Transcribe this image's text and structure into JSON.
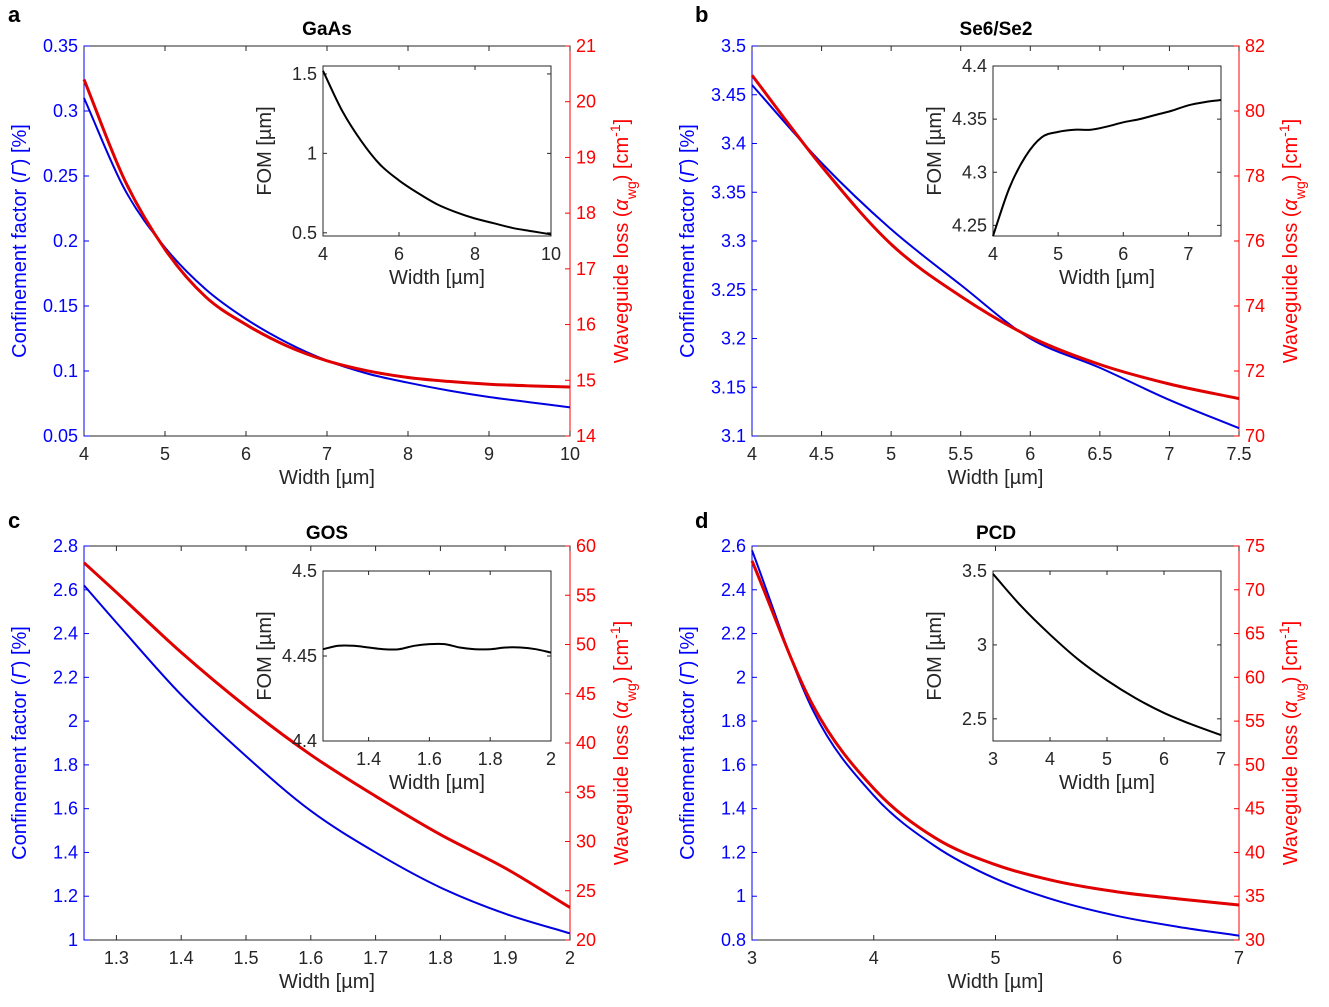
{
  "colors": {
    "left_axis": "#0000ff",
    "right_axis": "#ff0000",
    "confinement_line": "#0000e0",
    "loss_line": "#e00000",
    "fom_line": "#000000"
  },
  "chart_data": [
    {
      "panel_label": "a",
      "type": "line",
      "title": "GaAs",
      "xlabel": "Width [µm]",
      "ylabel_left": "Confinement factor (Γ) [%]",
      "ylabel_right": "Waveguide loss (αwg) [cm-1]",
      "xlim": [
        4,
        10
      ],
      "xticks": [
        "4",
        "5",
        "6",
        "7",
        "8",
        "9",
        "10"
      ],
      "ylim_left": [
        0.05,
        0.35
      ],
      "yticks_left": [
        "0.05",
        "0.1",
        "0.15",
        "0.2",
        "0.25",
        "0.3",
        "0.35"
      ],
      "ylim_right": [
        14,
        21
      ],
      "yticks_right": [
        "14",
        "15",
        "16",
        "17",
        "18",
        "19",
        "20",
        "21"
      ],
      "x": [
        4,
        4.5,
        5,
        5.5,
        6,
        6.5,
        7,
        7.5,
        8,
        8.5,
        9,
        9.5,
        10
      ],
      "series": [
        {
          "axis": "left",
          "values": [
            0.31,
            0.24,
            0.195,
            0.163,
            0.14,
            0.122,
            0.108,
            0.098,
            0.091,
            0.085,
            0.08,
            0.076,
            0.072
          ]
        },
        {
          "axis": "right",
          "values": [
            20.4,
            18.6,
            17.35,
            16.5,
            16.0,
            15.62,
            15.35,
            15.17,
            15.05,
            14.98,
            14.93,
            14.9,
            14.88
          ]
        }
      ],
      "inset": {
        "xlabel": "Width [µm]",
        "ylabel": "FOM [µm]",
        "xlim": [
          4,
          10
        ],
        "xticks": [
          "4",
          "6",
          "8",
          "10"
        ],
        "ylim": [
          0.48,
          1.55
        ],
        "yticks": [
          "0.5",
          "1",
          "1.5"
        ],
        "x": [
          4,
          4.5,
          5,
          5.5,
          6,
          6.5,
          7,
          7.5,
          8,
          8.5,
          9,
          9.5,
          10
        ],
        "values": [
          1.52,
          1.27,
          1.08,
          0.93,
          0.83,
          0.75,
          0.68,
          0.63,
          0.59,
          0.56,
          0.53,
          0.51,
          0.49
        ]
      }
    },
    {
      "panel_label": "b",
      "type": "line",
      "title": "Se6/Se2",
      "xlabel": "Width [µm]",
      "ylabel_left": "Confinement factor (Γ) [%]",
      "ylabel_right": "Waveguide loss (αwg) [cm-1]",
      "xlim": [
        4,
        7.5
      ],
      "xticks": [
        "4",
        "4.5",
        "5",
        "5.5",
        "6",
        "6.5",
        "7",
        "7.5"
      ],
      "ylim_left": [
        3.1,
        3.5
      ],
      "yticks_left": [
        "3.1",
        "3.15",
        "3.2",
        "3.25",
        "3.3",
        "3.35",
        "3.4",
        "3.45",
        "3.5"
      ],
      "ylim_right": [
        70,
        82
      ],
      "yticks_right": [
        "70",
        "72",
        "74",
        "76",
        "78",
        "80",
        "82"
      ],
      "x": [
        4,
        4.5,
        5,
        5.5,
        6,
        6.5,
        7,
        7.5
      ],
      "series": [
        {
          "axis": "left",
          "values": [
            3.46,
            3.38,
            3.312,
            3.255,
            3.2,
            3.17,
            3.137,
            3.108
          ]
        },
        {
          "axis": "right",
          "values": [
            81.1,
            78.3,
            75.9,
            74.3,
            73.05,
            72.2,
            71.6,
            71.15
          ]
        }
      ],
      "inset": {
        "xlabel": "Width [µm]",
        "ylabel": "FOM [µm]",
        "xlim": [
          4,
          7.5
        ],
        "xticks": [
          "4",
          "5",
          "6",
          "7"
        ],
        "ylim": [
          4.24,
          4.4
        ],
        "yticks": [
          "4.25",
          "4.3",
          "4.35",
          "4.4"
        ],
        "x": [
          4,
          4.25,
          4.5,
          4.75,
          5,
          5.25,
          5.5,
          5.75,
          6,
          6.25,
          6.5,
          6.75,
          7,
          7.25,
          7.5
        ],
        "values": [
          4.24,
          4.285,
          4.315,
          4.333,
          4.338,
          4.34,
          4.34,
          4.343,
          4.347,
          4.35,
          4.354,
          4.358,
          4.363,
          4.366,
          4.368
        ]
      }
    },
    {
      "panel_label": "c",
      "type": "line",
      "title": "GOS",
      "xlabel": "Width [µm]",
      "ylabel_left": "Confinement factor (Γ) [%]",
      "ylabel_right": "Waveguide loss (αwg) [cm-1]",
      "xlim": [
        1.25,
        2
      ],
      "xticks": [
        "1.3",
        "1.4",
        "1.5",
        "1.6",
        "1.7",
        "1.8",
        "1.9",
        "2"
      ],
      "xtick_values": [
        1.3,
        1.4,
        1.5,
        1.6,
        1.7,
        1.8,
        1.9,
        2
      ],
      "ylim_left": [
        1,
        2.8
      ],
      "yticks_left": [
        "1",
        "1.2",
        "1.4",
        "1.6",
        "1.8",
        "2",
        "2.2",
        "2.4",
        "2.6",
        "2.8"
      ],
      "ylim_right": [
        20,
        60
      ],
      "yticks_right": [
        "20",
        "25",
        "30",
        "35",
        "40",
        "45",
        "50",
        "55",
        "60"
      ],
      "x": [
        1.25,
        1.3,
        1.4,
        1.5,
        1.6,
        1.7,
        1.8,
        1.9,
        2
      ],
      "series": [
        {
          "axis": "left",
          "values": [
            2.62,
            2.45,
            2.12,
            1.84,
            1.59,
            1.4,
            1.24,
            1.12,
            1.03
          ]
        },
        {
          "axis": "right",
          "values": [
            58.3,
            55.3,
            49.2,
            43.7,
            38.8,
            34.6,
            30.7,
            27.3,
            23.3
          ]
        }
      ],
      "inset": {
        "xlabel": "Width [µm]",
        "ylabel": "FOM [µm]",
        "xlim": [
          1.25,
          2
        ],
        "xticks": [
          "1.4",
          "1.6",
          "1.8",
          "2"
        ],
        "xtick_values": [
          1.4,
          1.6,
          1.8,
          2
        ],
        "ylim": [
          4.4,
          4.5
        ],
        "yticks": [
          "4.4",
          "4.45",
          "4.5"
        ],
        "x": [
          1.25,
          1.3,
          1.35,
          1.4,
          1.45,
          1.5,
          1.55,
          1.6,
          1.65,
          1.7,
          1.75,
          1.8,
          1.85,
          1.9,
          1.95,
          2
        ],
        "values": [
          4.454,
          4.456,
          4.456,
          4.455,
          4.454,
          4.454,
          4.456,
          4.457,
          4.457,
          4.455,
          4.454,
          4.454,
          4.455,
          4.455,
          4.454,
          4.452
        ]
      }
    },
    {
      "panel_label": "d",
      "type": "line",
      "title": "PCD",
      "xlabel": "Width [µm]",
      "ylabel_left": "Confinement factor (Γ) [%]",
      "ylabel_right": "Waveguide loss (αwg) [cm-1]",
      "xlim": [
        3,
        7
      ],
      "xticks": [
        "3",
        "4",
        "5",
        "6",
        "7"
      ],
      "ylim_left": [
        0.8,
        2.6
      ],
      "yticks_left": [
        "0.8",
        "1",
        "1.2",
        "1.4",
        "1.6",
        "1.8",
        "2",
        "2.2",
        "2.4",
        "2.6"
      ],
      "ylim_right": [
        30,
        75
      ],
      "yticks_right": [
        "30",
        "35",
        "40",
        "45",
        "50",
        "55",
        "60",
        "65",
        "70",
        "75"
      ],
      "x": [
        3,
        3.5,
        4,
        4.5,
        5,
        5.5,
        6,
        6.5,
        7
      ],
      "series": [
        {
          "axis": "left",
          "values": [
            2.58,
            1.85,
            1.46,
            1.23,
            1.08,
            0.98,
            0.91,
            0.86,
            0.82
          ]
        },
        {
          "axis": "right",
          "values": [
            73.3,
            56.8,
            47.3,
            41.7,
            38.6,
            36.7,
            35.5,
            34.7,
            34.0
          ]
        }
      ],
      "inset": {
        "xlabel": "Width [µm]",
        "ylabel": "FOM [µm]",
        "xlim": [
          3,
          7
        ],
        "xticks": [
          "3",
          "4",
          "5",
          "6",
          "7"
        ],
        "ylim": [
          2.35,
          3.5
        ],
        "yticks": [
          "2.5",
          "3",
          "3.5"
        ],
        "x": [
          3,
          3.5,
          4,
          4.5,
          5,
          5.5,
          6,
          6.5,
          7
        ],
        "values": [
          3.48,
          3.26,
          3.07,
          2.9,
          2.76,
          2.64,
          2.54,
          2.46,
          2.39
        ]
      }
    }
  ]
}
